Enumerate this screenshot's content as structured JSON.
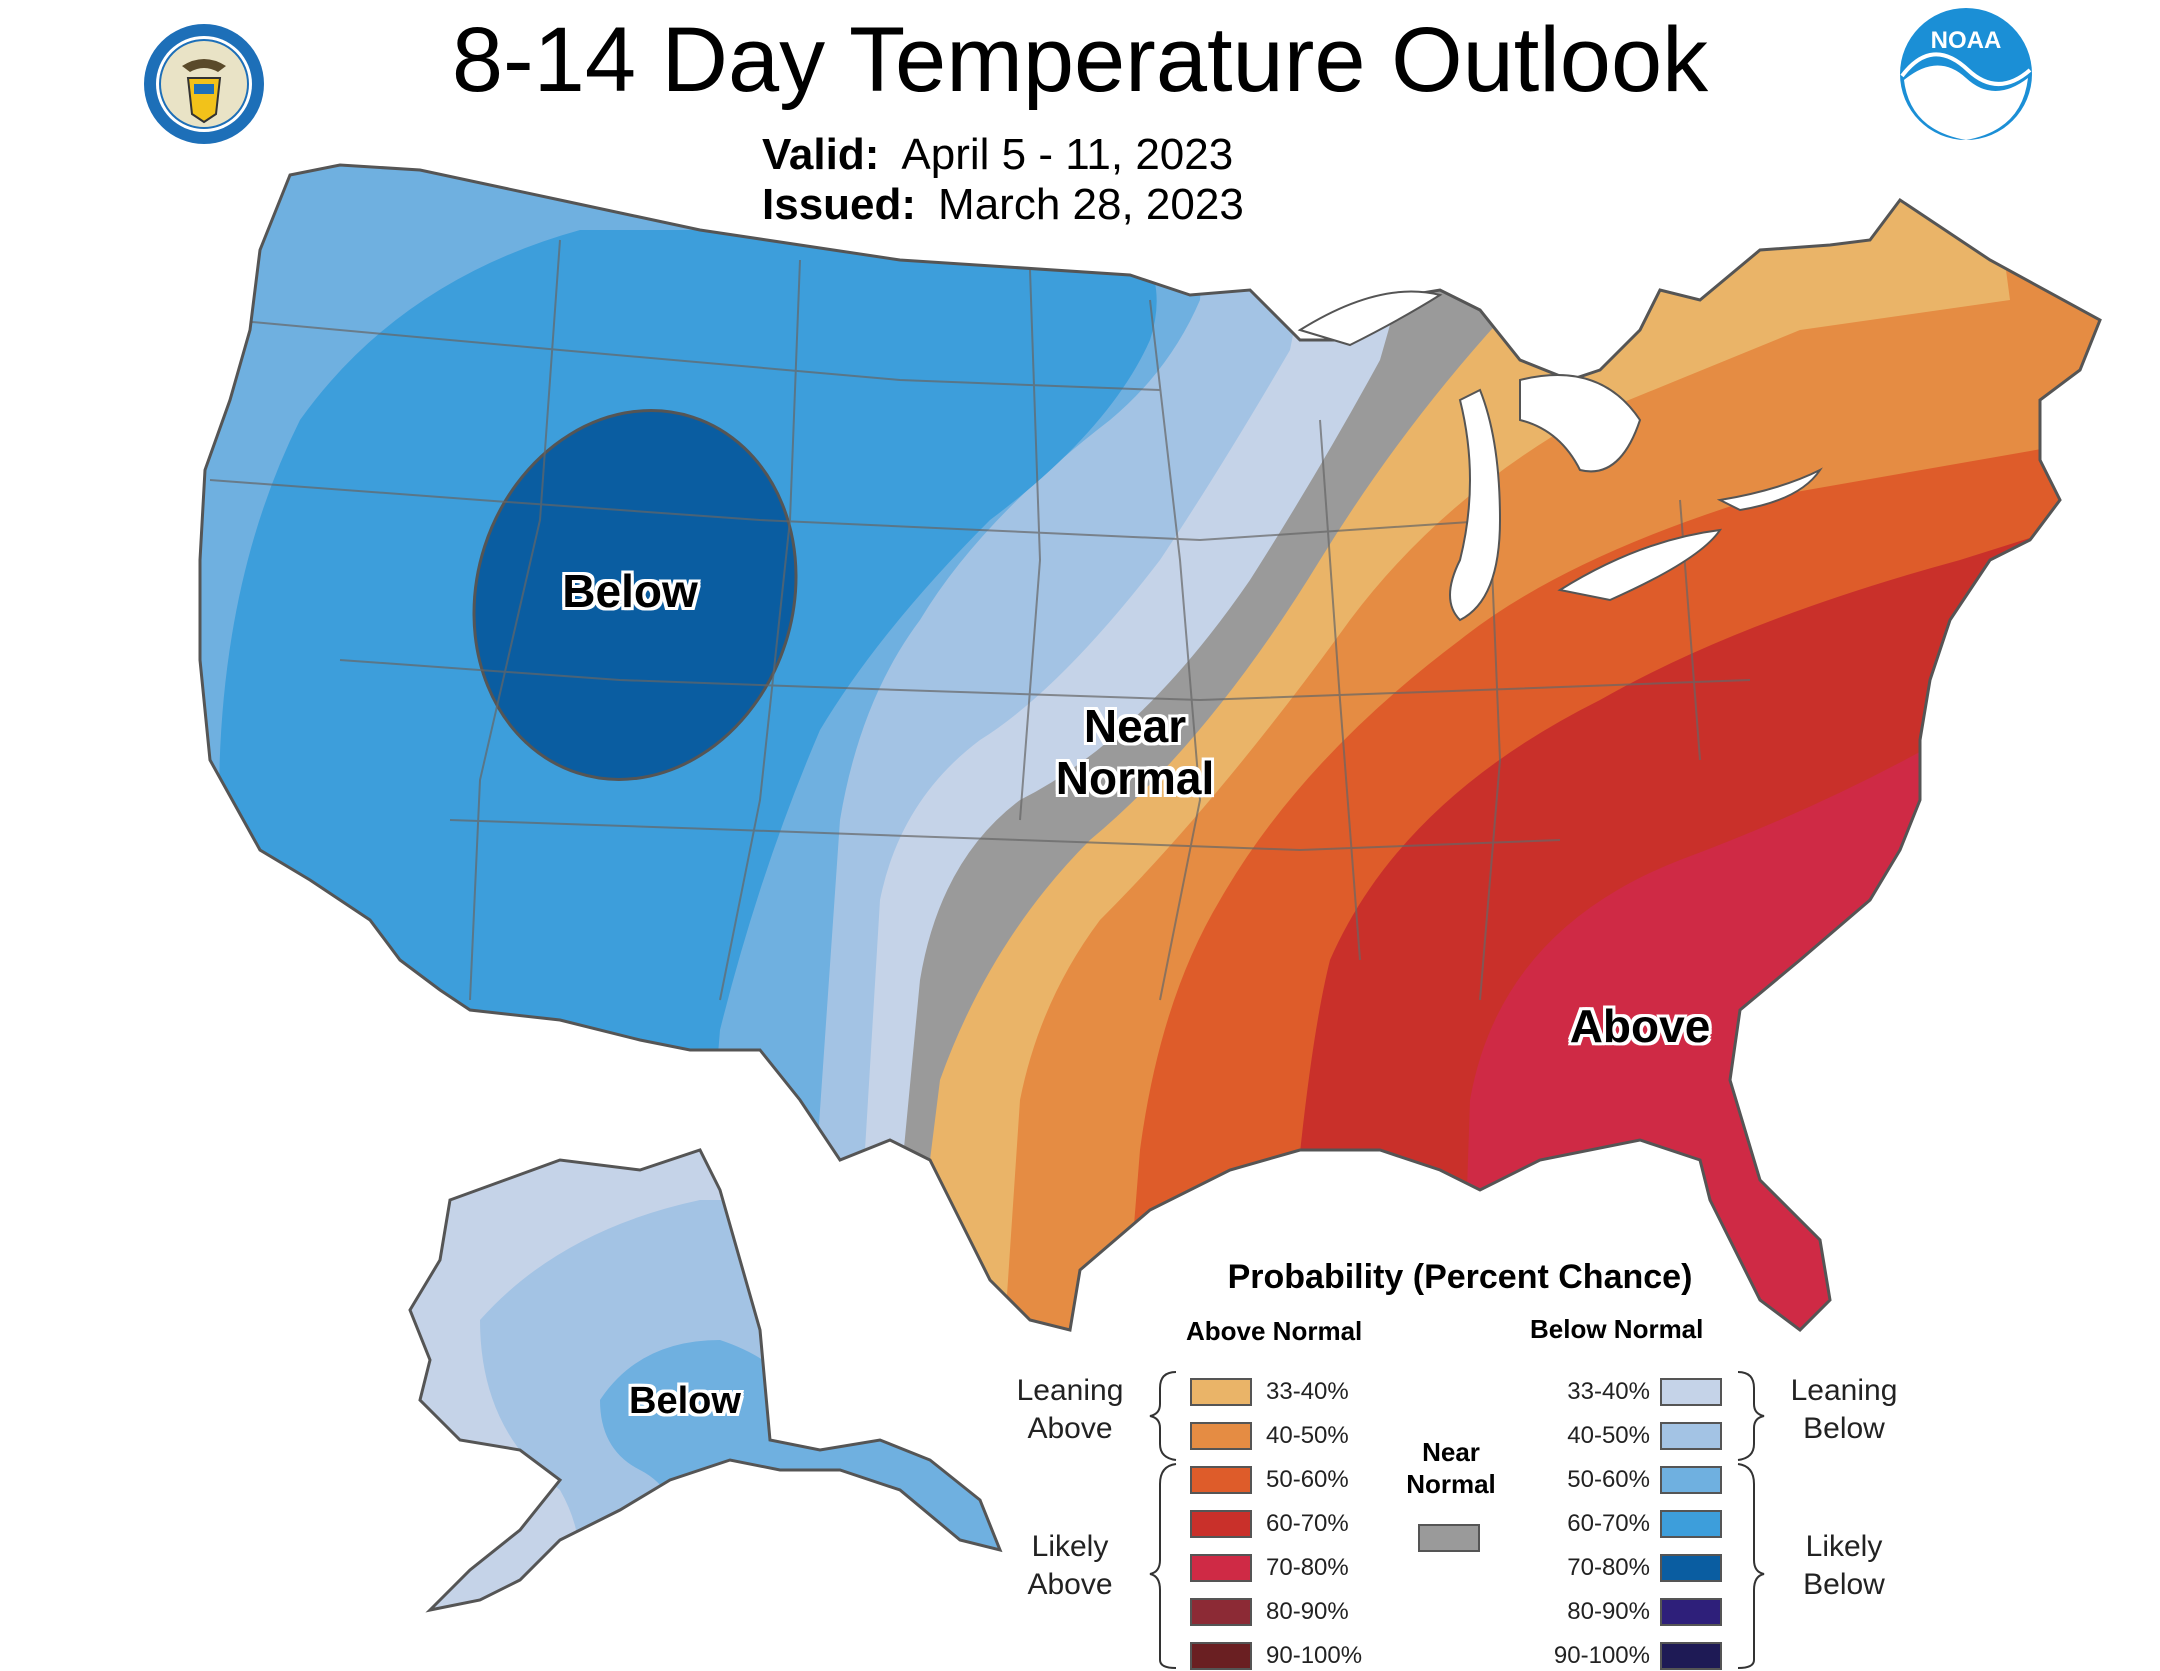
{
  "header": {
    "title": "8-14 Day Temperature Outlook",
    "valid_label": "Valid:",
    "valid_value": "April 5 - 11, 2023",
    "issued_label": "Issued:",
    "issued_value": "March 28, 2023",
    "left_logo": "doc-seal-icon",
    "right_logo": "noaa-logo-icon",
    "noaa_text": "NOAA"
  },
  "map": {
    "labels": {
      "below_west": "Below",
      "near_normal": "Near\nNormal",
      "above_east": "Above",
      "below_alaska": "Below"
    },
    "colors": {
      "below_33_40": "#c5d3e8",
      "below_40_50": "#a3c3e4",
      "below_50_60": "#6fb0e0",
      "below_60_70": "#3d9edb",
      "below_70_80": "#0a5da1",
      "near_normal": "#9a9a9a",
      "above_33_40": "#eab468",
      "above_40_50": "#e58c43",
      "above_50_60": "#de5c2a",
      "above_60_70": "#c9302a",
      "above_70_80": "#cf2a45"
    }
  },
  "legend": {
    "title": "Probability (Percent Chance)",
    "above_head": "Above Normal",
    "below_head": "Below Normal",
    "leaning_above": "Leaning\nAbove",
    "likely_above": "Likely\nAbove",
    "leaning_below": "Leaning\nBelow",
    "likely_below": "Likely\nBelow",
    "near_normal": "Near\nNormal",
    "near_color": "#9a9a9a",
    "above": [
      {
        "label": "33-40%",
        "color": "#eab468"
      },
      {
        "label": "40-50%",
        "color": "#e58c43"
      },
      {
        "label": "50-60%",
        "color": "#de5c2a"
      },
      {
        "label": "60-70%",
        "color": "#c9302a"
      },
      {
        "label": "70-80%",
        "color": "#cf2a45"
      },
      {
        "label": "80-90%",
        "color": "#8c2a35"
      },
      {
        "label": "90-100%",
        "color": "#6a1f22"
      }
    ],
    "below": [
      {
        "label": "33-40%",
        "color": "#c5d3e8"
      },
      {
        "label": "40-50%",
        "color": "#a3c3e4"
      },
      {
        "label": "50-60%",
        "color": "#6fb0e0"
      },
      {
        "label": "60-70%",
        "color": "#3d9edb"
      },
      {
        "label": "70-80%",
        "color": "#0a5da1"
      },
      {
        "label": "80-90%",
        "color": "#2e1f7a"
      },
      {
        "label": "90-100%",
        "color": "#1e1a55"
      }
    ]
  }
}
